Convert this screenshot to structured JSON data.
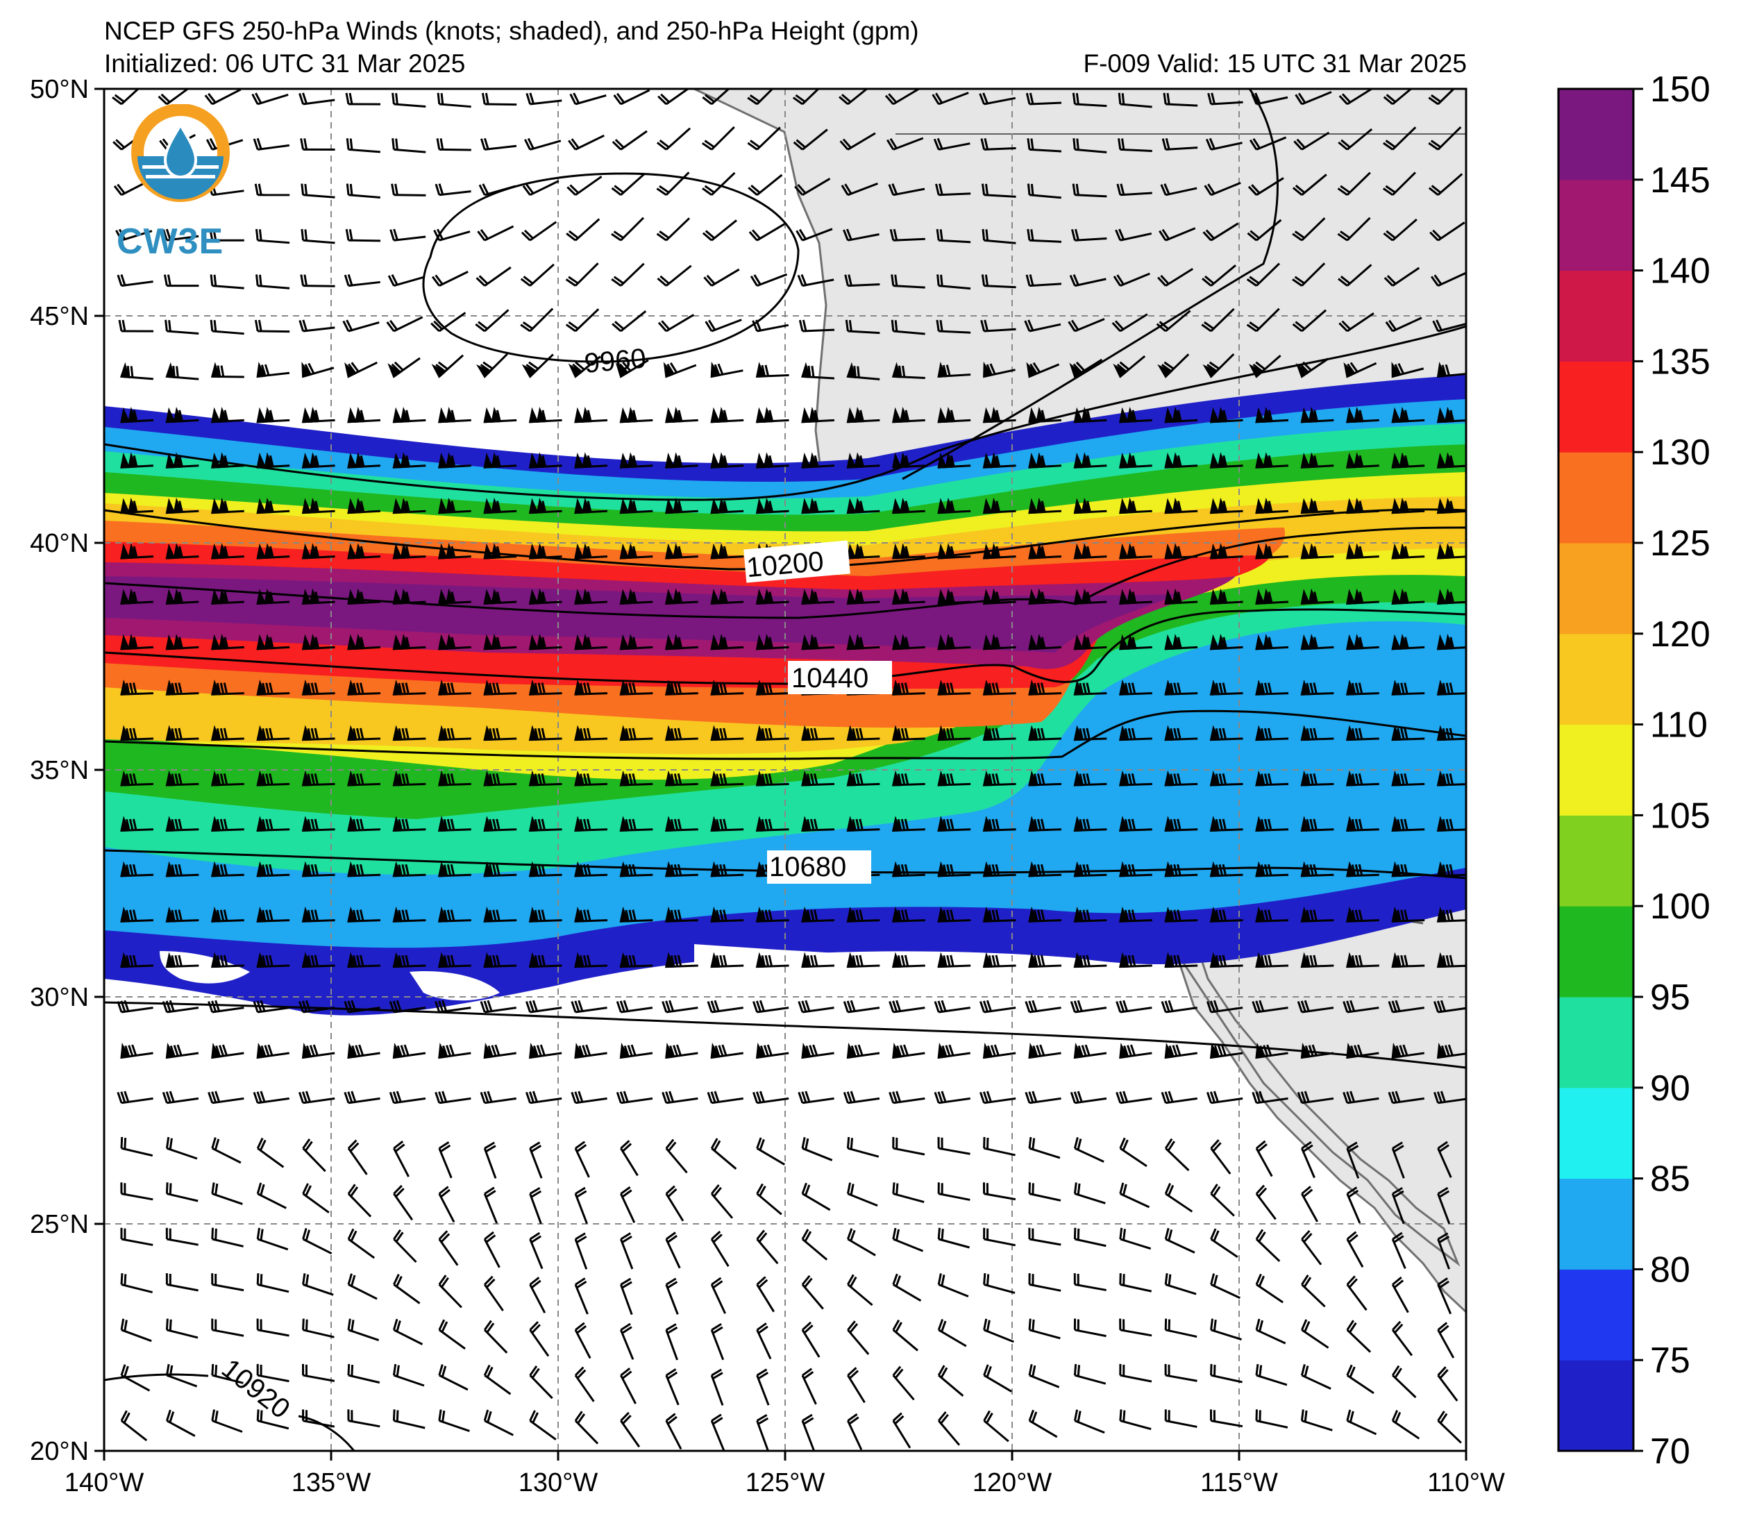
{
  "title": "NCEP GFS 250-hPa Winds (knots; shaded), and 250-hPa Height (gpm)",
  "initialized": "Initialized: 06 UTC 31 Mar 2025",
  "valid": "F-009  Valid: 15 UTC 31 Mar 2025",
  "logo": {
    "text": "CW3E",
    "colors": {
      "ring": "#f5a020",
      "water": "#2a8bbf"
    }
  },
  "map": {
    "lon_range": [
      -140,
      -110
    ],
    "lat_range": [
      20,
      50
    ],
    "lon_ticks": [
      "140°W",
      "135°W",
      "130°W",
      "125°W",
      "120°W",
      "115°W",
      "110°W"
    ],
    "lat_ticks": [
      "50°N",
      "45°N",
      "40°N",
      "35°N",
      "30°N",
      "25°N",
      "20°N"
    ],
    "grid": "dashed",
    "land_color": "#e6e6e6"
  },
  "height_contours": {
    "units": "gpm",
    "labels": [
      "9960",
      "10200",
      "10440",
      "10680",
      "10920"
    ]
  },
  "colorbar": {
    "units": "knots",
    "levels": [
      70,
      75,
      80,
      85,
      90,
      95,
      100,
      105,
      110,
      120,
      125,
      130,
      135,
      140,
      145,
      150
    ],
    "tick_labels": [
      "70",
      "75",
      "80",
      "85",
      "90",
      "95",
      "100",
      "105",
      "110",
      "120",
      "125",
      "130",
      "135",
      "140",
      "145",
      "150"
    ],
    "colors": [
      "#2020c8",
      "#2038f0",
      "#20a8f0",
      "#20f0f0",
      "#20e0a0",
      "#20b820",
      "#80d020",
      "#f0f020",
      "#f8c820",
      "#f8a020",
      "#f87020",
      "#f82020",
      "#d01848",
      "#a01870",
      "#7a1880"
    ]
  }
}
